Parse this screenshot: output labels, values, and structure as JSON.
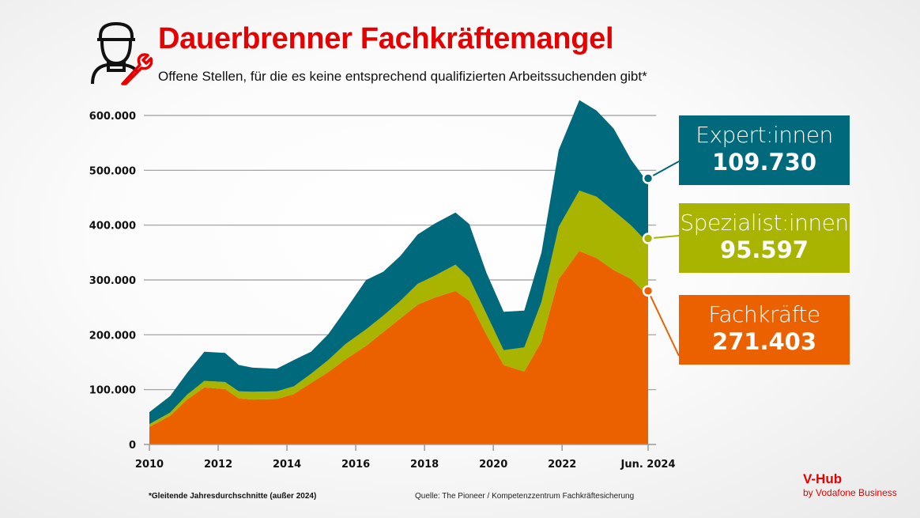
{
  "header": {
    "title": "Dauerbrenner Fachkräftemangel",
    "subtitle": "Offene Stellen, für die es keine entsprechend qualifizierten Arbeitssuchenden gibt*",
    "icon": "worker-with-wrench-icon"
  },
  "legend": [
    {
      "label": "Expert:innen",
      "value": "109.730",
      "color": "#00697c"
    },
    {
      "label": "Spezialist:innen",
      "value": "95.597",
      "color": "#a8b400"
    },
    {
      "label": "Fachkräfte",
      "value": "271.403",
      "color": "#eb6100"
    }
  ],
  "footer": {
    "footnote": "*Gleitende Jahresdurchschnitte (außer 2024)",
    "source": "Quelle:  The Pioneer / Kompetenzzentrum Fachkräftesicherung",
    "brand_name": "V-Hub",
    "brand_sub": "by Vodafone Business"
  },
  "chart_data": {
    "type": "area",
    "stacked": true,
    "title": "Dauerbrenner Fachkräftemangel",
    "subtitle": "Offene Stellen, für die es keine entsprechend qualifizierten Arbeitssuchenden gibt*",
    "xlabel": "",
    "ylabel": "",
    "ylim": [
      0,
      600000
    ],
    "xlim": [
      2010,
      2024.5
    ],
    "grid": true,
    "legend_position": "right",
    "y_ticks": [
      {
        "value": 0,
        "label": "0"
      },
      {
        "value": 100000,
        "label": "100.000"
      },
      {
        "value": 200000,
        "label": "200.000"
      },
      {
        "value": 300000,
        "label": "300.000"
      },
      {
        "value": 400000,
        "label": "400.000"
      },
      {
        "value": 500000,
        "label": "500.000"
      },
      {
        "value": 600000,
        "label": "600.000"
      }
    ],
    "x_ticks": [
      {
        "value": 2010,
        "label": "2010"
      },
      {
        "value": 2012,
        "label": "2012"
      },
      {
        "value": 2014,
        "label": "2014"
      },
      {
        "value": 2016,
        "label": "2016"
      },
      {
        "value": 2018,
        "label": "2018"
      },
      {
        "value": 2020,
        "label": "2020"
      },
      {
        "value": 2022,
        "label": "2022"
      },
      {
        "value": 2024.5,
        "label": "Jun. 2024"
      }
    ],
    "x": [
      2010.0,
      2010.6,
      2011.1,
      2011.6,
      2012.2,
      2012.6,
      2013.0,
      2013.7,
      2014.2,
      2014.7,
      2015.2,
      2015.7,
      2016.3,
      2016.8,
      2017.3,
      2017.8,
      2018.3,
      2018.9,
      2019.3,
      2019.8,
      2020.3,
      2020.9,
      2021.4,
      2021.9,
      2022.5,
      2023.0,
      2023.5,
      2024.0,
      2024.5
    ],
    "series": [
      {
        "name": "Fachkräfte",
        "color": "#eb6100",
        "values": [
          32000,
          52000,
          82000,
          104000,
          101000,
          84000,
          82000,
          83000,
          92000,
          112000,
          132000,
          155000,
          180000,
          205000,
          230000,
          255000,
          268000,
          280000,
          262000,
          200000,
          145000,
          133000,
          188000,
          302000,
          353000,
          340000,
          318000,
          302000,
          271403
        ]
      },
      {
        "name": "Spezialist:innen",
        "color": "#a8b400",
        "values": [
          5000,
          6000,
          9000,
          12000,
          13000,
          13000,
          14000,
          14000,
          14000,
          17000,
          22000,
          28000,
          30000,
          30000,
          32000,
          38000,
          40000,
          48000,
          42000,
          38000,
          27000,
          44000,
          72000,
          95000,
          110000,
          112000,
          108000,
          98000,
          95597
        ]
      },
      {
        "name": "Expert:innen",
        "color": "#00697c",
        "values": [
          22000,
          30000,
          40000,
          53000,
          53000,
          48000,
          44000,
          41000,
          48000,
          40000,
          47000,
          62000,
          90000,
          80000,
          82000,
          90000,
          95000,
          95000,
          98000,
          75000,
          70000,
          67000,
          90000,
          140000,
          165000,
          157000,
          150000,
          120000,
          109730
        ]
      }
    ],
    "annotations": [
      {
        "series": "Expert:innen",
        "label": "Expert:innen",
        "value": "109.730"
      },
      {
        "series": "Spezialist:innen",
        "label": "Spezialist:innen",
        "value": "95.597"
      },
      {
        "series": "Fachkräfte",
        "label": "Fachkräfte",
        "value": "271.403"
      }
    ],
    "notes": [
      "*Gleitende Jahresdurchschnitte (außer 2024)",
      "Quelle:  The Pioneer / Kompetenzzentrum Fachkräftesicherung"
    ]
  }
}
